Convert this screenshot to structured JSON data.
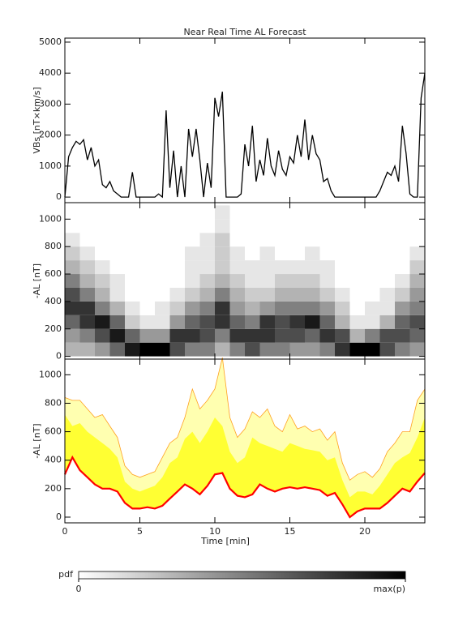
{
  "chart_data": [
    {
      "type": "line",
      "title": "Near Real Time AL Forecast",
      "ylabel": "VBs [nT×km/s]",
      "xlim": [
        0,
        24
      ],
      "xticks": [
        0,
        5,
        10,
        15,
        20
      ],
      "show_xtick_labels": false,
      "ylim": [
        -180,
        5130
      ],
      "yticks": [
        0,
        1000,
        2000,
        3000,
        4000,
        5000
      ],
      "x": [
        0,
        0.25,
        0.5,
        0.75,
        1,
        1.25,
        1.5,
        1.75,
        2,
        2.25,
        2.5,
        2.75,
        3,
        3.25,
        3.5,
        3.75,
        4,
        4.25,
        4.5,
        4.75,
        5,
        5.25,
        5.5,
        5.75,
        6,
        6.25,
        6.5,
        6.75,
        7,
        7.25,
        7.5,
        7.75,
        8,
        8.25,
        8.5,
        8.75,
        9,
        9.25,
        9.5,
        9.75,
        10,
        10.25,
        10.5,
        10.75,
        11,
        11.25,
        11.5,
        11.75,
        12,
        12.25,
        12.5,
        12.75,
        13,
        13.25,
        13.5,
        13.75,
        14,
        14.25,
        14.5,
        14.75,
        15,
        15.25,
        15.5,
        15.75,
        16,
        16.25,
        16.5,
        16.75,
        17,
        17.25,
        17.5,
        17.75,
        18,
        18.25,
        18.5,
        18.75,
        19,
        19.25,
        19.5,
        19.75,
        20,
        20.25,
        20.5,
        20.75,
        21,
        21.25,
        21.5,
        21.75,
        22,
        22.25,
        22.5,
        22.75,
        23,
        23.25,
        23.5,
        23.75,
        24
      ],
      "series": [
        {
          "color": "#000000",
          "values": [
            0,
            1300,
            1600,
            1800,
            1700,
            1850,
            1200,
            1600,
            1000,
            1200,
            400,
            300,
            500,
            200,
            100,
            0,
            0,
            0,
            800,
            0,
            0,
            0,
            0,
            0,
            0,
            100,
            0,
            2800,
            300,
            1500,
            0,
            1000,
            0,
            2200,
            1300,
            2200,
            1200,
            0,
            1100,
            300,
            3200,
            2600,
            3400,
            0,
            0,
            0,
            0,
            100,
            1700,
            1000,
            2300,
            500,
            1200,
            700,
            1900,
            1000,
            700,
            1500,
            900,
            700,
            1300,
            1100,
            2000,
            1300,
            2500,
            1200,
            2000,
            1400,
            1200,
            500,
            600,
            200,
            0,
            0,
            0,
            0,
            0,
            0,
            0,
            0,
            0,
            0,
            0,
            0,
            200,
            500,
            800,
            700,
            1000,
            500,
            2300,
            1400,
            100,
            0,
            0,
            3200,
            4000
          ]
        }
      ]
    },
    {
      "type": "heatmap",
      "ylabel": "-AL [nT]",
      "xlim": [
        0,
        24
      ],
      "xticks": [
        0,
        5,
        10,
        15,
        20
      ],
      "show_xtick_labels": false,
      "ylim": [
        -20,
        1120
      ],
      "yticks": [
        0,
        200,
        400,
        600,
        800,
        1000
      ],
      "x_bin_edges": [
        0,
        1,
        2,
        3,
        4,
        5,
        6,
        7,
        8,
        9,
        10,
        11,
        12,
        13,
        14,
        15,
        16,
        17,
        18,
        19,
        20,
        21,
        22,
        23,
        24
      ],
      "y_bin_edges": [
        0,
        100,
        200,
        300,
        400,
        500,
        600,
        700,
        800,
        900,
        1000,
        1100
      ],
      "values": [
        [
          0.3,
          0.4,
          0.6,
          0.8,
          0.7,
          0.5,
          0.3,
          0.2,
          0.1,
          0,
          0
        ],
        [
          0.3,
          0.5,
          0.8,
          0.8,
          0.5,
          0.3,
          0.2,
          0.1,
          0,
          0,
          0
        ],
        [
          0.4,
          0.7,
          0.9,
          0.5,
          0.3,
          0.2,
          0.1,
          0,
          0,
          0,
          0
        ],
        [
          0.6,
          0.9,
          0.6,
          0.3,
          0.1,
          0.1,
          0,
          0,
          0,
          0,
          0
        ],
        [
          0.9,
          0.6,
          0.2,
          0.1,
          0,
          0,
          0,
          0,
          0,
          0,
          0
        ],
        [
          1,
          0.4,
          0.1,
          0,
          0,
          0,
          0,
          0,
          0,
          0,
          0
        ],
        [
          1,
          0.4,
          0.1,
          0.1,
          0,
          0,
          0,
          0,
          0,
          0,
          0
        ],
        [
          0.7,
          0.8,
          0.4,
          0.2,
          0.1,
          0,
          0,
          0,
          0,
          0,
          0
        ],
        [
          0.5,
          0.8,
          0.6,
          0.4,
          0.2,
          0.1,
          0.1,
          0.1,
          0,
          0,
          0
        ],
        [
          0.5,
          0.7,
          0.7,
          0.5,
          0.3,
          0.2,
          0.1,
          0.1,
          0.1,
          0,
          0
        ],
        [
          0.3,
          0.5,
          0.8,
          0.8,
          0.5,
          0.3,
          0.2,
          0.2,
          0.2,
          0.1,
          0.1
        ],
        [
          0.5,
          0.8,
          0.6,
          0.4,
          0.3,
          0.2,
          0.1,
          0.1,
          0,
          0,
          0
        ],
        [
          0.7,
          0.8,
          0.5,
          0.3,
          0.2,
          0.1,
          0.1,
          0,
          0,
          0,
          0
        ],
        [
          0.5,
          0.8,
          0.8,
          0.4,
          0.2,
          0.1,
          0.1,
          0.1,
          0,
          0,
          0
        ],
        [
          0.5,
          0.7,
          0.7,
          0.5,
          0.3,
          0.2,
          0.1,
          0,
          0,
          0,
          0
        ],
        [
          0.4,
          0.7,
          0.8,
          0.5,
          0.3,
          0.2,
          0.1,
          0,
          0,
          0,
          0
        ],
        [
          0.4,
          0.6,
          0.9,
          0.5,
          0.3,
          0.2,
          0.1,
          0.1,
          0,
          0,
          0
        ],
        [
          0.5,
          0.8,
          0.6,
          0.4,
          0.2,
          0.1,
          0.1,
          0,
          0,
          0,
          0
        ],
        [
          0.8,
          0.7,
          0.3,
          0.2,
          0.1,
          0,
          0,
          0,
          0,
          0,
          0
        ],
        [
          1,
          0.3,
          0.1,
          0,
          0,
          0,
          0,
          0,
          0,
          0,
          0
        ],
        [
          1,
          0.5,
          0.1,
          0.1,
          0,
          0,
          0,
          0,
          0,
          0,
          0
        ],
        [
          0.7,
          0.7,
          0.3,
          0.1,
          0.1,
          0,
          0,
          0,
          0,
          0,
          0
        ],
        [
          0.5,
          0.7,
          0.6,
          0.4,
          0.2,
          0.1,
          0,
          0,
          0,
          0,
          0
        ],
        [
          0.4,
          0.6,
          0.7,
          0.5,
          0.4,
          0.3,
          0.2,
          0.1,
          0,
          0,
          0
        ]
      ],
      "colorbar": {
        "label": "pdf",
        "lim": [
          0,
          1
        ],
        "ticks": [
          0,
          {
            "value": 1,
            "label": "max(p)"
          }
        ]
      }
    },
    {
      "type": "band",
      "ylabel": "-AL [nT]",
      "xlabel": "Time [min]",
      "xlim": [
        0,
        24
      ],
      "xticks": [
        0,
        5,
        10,
        15,
        20
      ],
      "show_xtick_labels": true,
      "ylim": [
        -40,
        1110
      ],
      "yticks": [
        0,
        200,
        400,
        600,
        800,
        1000
      ],
      "x": [
        0,
        0.5,
        1,
        1.5,
        2,
        2.5,
        3,
        3.5,
        4,
        4.5,
        5,
        5.5,
        6,
        6.5,
        7,
        7.5,
        8,
        8.5,
        9,
        9.5,
        10,
        10.5,
        11,
        11.5,
        12,
        12.5,
        13,
        13.5,
        14,
        14.5,
        15,
        15.5,
        16,
        16.5,
        17,
        17.5,
        18,
        18.5,
        19,
        19.5,
        20,
        20.5,
        21,
        21.5,
        22,
        22.5,
        23,
        23.5,
        24
      ],
      "series": [
        {
          "color": "#ff0000",
          "values": [
            300,
            420,
            330,
            280,
            230,
            200,
            200,
            180,
            100,
            60,
            60,
            70,
            60,
            80,
            130,
            180,
            230,
            200,
            160,
            220,
            300,
            310,
            200,
            150,
            140,
            160,
            230,
            200,
            180,
            200,
            210,
            200,
            210,
            200,
            190,
            150,
            170,
            90,
            0,
            40,
            60,
            60,
            60,
            100,
            150,
            200,
            180,
            250,
            310
          ]
        },
        {
          "color": "#ffff33",
          "values": [
            720,
            640,
            660,
            600,
            560,
            520,
            480,
            420,
            250,
            200,
            180,
            200,
            220,
            280,
            380,
            420,
            550,
            600,
            520,
            600,
            700,
            640,
            460,
            380,
            420,
            560,
            520,
            500,
            480,
            460,
            520,
            500,
            480,
            470,
            460,
            400,
            420,
            260,
            140,
            180,
            180,
            160,
            220,
            300,
            380,
            420,
            450,
            560,
            700
          ]
        },
        {
          "color": "#ffa020",
          "values": [
            840,
            820,
            820,
            760,
            700,
            720,
            640,
            560,
            360,
            300,
            280,
            300,
            320,
            420,
            520,
            560,
            700,
            900,
            760,
            820,
            900,
            1120,
            700,
            560,
            620,
            740,
            700,
            760,
            640,
            600,
            720,
            620,
            640,
            600,
            620,
            540,
            600,
            380,
            260,
            300,
            320,
            280,
            340,
            460,
            520,
            600,
            600,
            820,
            900
          ]
        }
      ]
    }
  ]
}
